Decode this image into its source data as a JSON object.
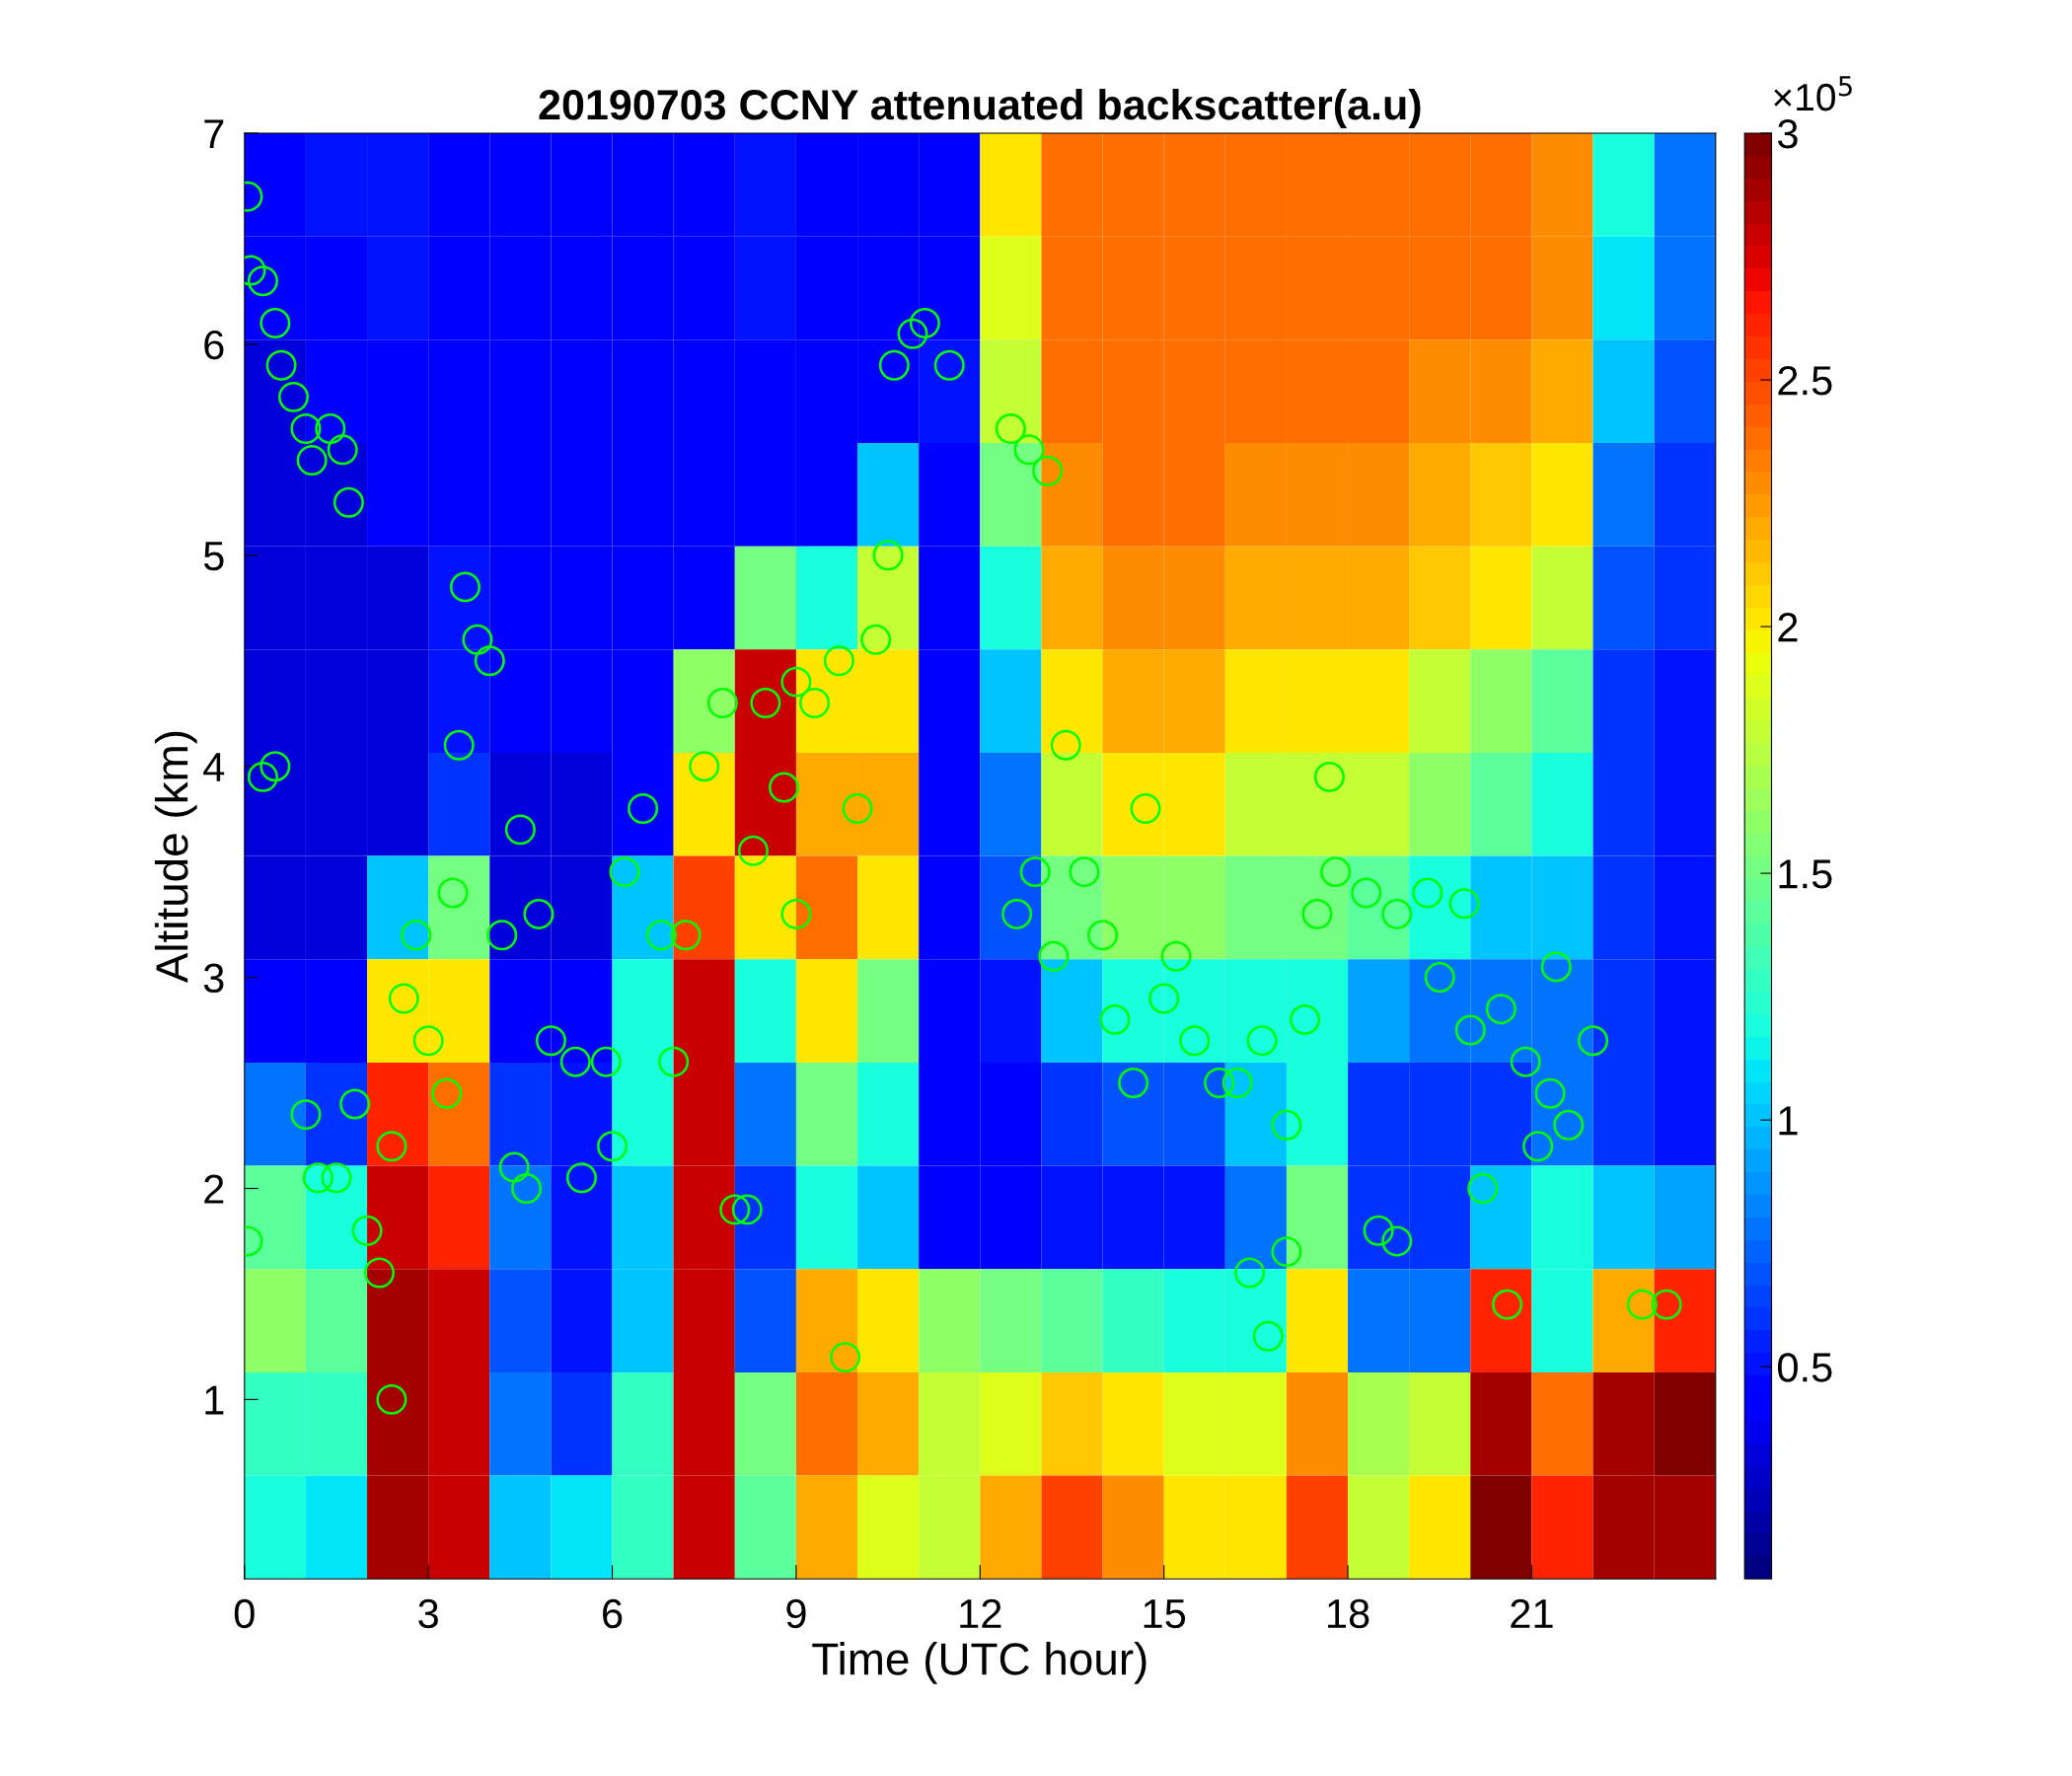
{
  "chart_data": {
    "type": "heatmap",
    "title": "20190703 CCNY attenuated backscatter(a.u)",
    "xlabel": "Time (UTC hour)",
    "ylabel": "Altitude (km)",
    "clabel": "×10$^{5}$",
    "xlim": [
      0,
      24
    ],
    "xticks": [
      0,
      3,
      6,
      9,
      12,
      15,
      18,
      21
    ],
    "ylim": [
      0.15,
      7
    ],
    "yticks": [
      1,
      2,
      3,
      4,
      5,
      6,
      7
    ],
    "clim": [
      0.07,
      3
    ],
    "cticks": [
      0.5,
      1,
      1.5,
      2,
      2.5,
      3
    ],
    "x": [
      0.5,
      1.5,
      2.5,
      3.5,
      4.5,
      5.5,
      6.5,
      7.5,
      8.5,
      9.5,
      10.5,
      11.5,
      12.5,
      13.5,
      14.5,
      15.5,
      16.5,
      17.5,
      18.5,
      19.5,
      20.5,
      21.5,
      22.5,
      23.5
    ],
    "cells": [
      [
        0.4,
        0.5,
        0.5,
        0.4,
        0.4,
        0.4,
        0.4,
        0.4,
        0.5,
        0.4,
        0.4,
        0.4,
        2.0,
        2.4,
        2.4,
        2.4,
        2.4,
        2.4,
        2.4,
        2.4,
        2.4,
        2.3,
        1.2,
        0.8
      ],
      [
        0.4,
        0.4,
        0.5,
        0.4,
        0.4,
        0.4,
        0.4,
        0.4,
        0.5,
        0.4,
        0.4,
        0.4,
        1.9,
        2.4,
        2.4,
        2.4,
        2.4,
        2.4,
        2.4,
        2.4,
        2.4,
        2.3,
        1.1,
        0.8
      ],
      [
        0.3,
        0.4,
        0.4,
        0.4,
        0.4,
        0.4,
        0.4,
        0.4,
        0.4,
        0.4,
        0.4,
        0.5,
        1.8,
        2.4,
        2.4,
        2.4,
        2.4,
        2.4,
        2.4,
        2.3,
        2.3,
        2.2,
        1.0,
        0.7
      ],
      [
        0.3,
        0.3,
        0.4,
        0.4,
        0.4,
        0.4,
        0.4,
        0.4,
        0.4,
        0.4,
        1.0,
        0.4,
        1.5,
        2.3,
        2.4,
        2.4,
        2.3,
        2.3,
        2.3,
        2.2,
        2.1,
        2.0,
        0.8,
        0.6
      ],
      [
        0.3,
        0.3,
        0.3,
        0.5,
        0.4,
        0.4,
        0.4,
        0.4,
        1.5,
        1.2,
        1.8,
        0.4,
        1.2,
        2.2,
        2.3,
        2.3,
        2.2,
        2.2,
        2.2,
        2.1,
        2.0,
        1.8,
        0.7,
        0.6
      ],
      [
        0.3,
        0.3,
        0.3,
        0.5,
        0.4,
        0.4,
        0.4,
        1.6,
        2.8,
        2.0,
        2.0,
        0.4,
        1.0,
        2.0,
        2.2,
        2.2,
        2.0,
        2.0,
        2.0,
        1.8,
        1.6,
        1.4,
        0.6,
        0.5
      ],
      [
        0.3,
        0.3,
        0.3,
        0.6,
        0.3,
        0.3,
        0.4,
        2.0,
        2.8,
        2.2,
        2.2,
        0.4,
        0.8,
        1.8,
        2.0,
        2.0,
        1.8,
        1.8,
        1.8,
        1.6,
        1.4,
        1.2,
        0.6,
        0.5
      ],
      [
        0.3,
        0.3,
        1.0,
        1.5,
        0.3,
        0.3,
        1.0,
        2.5,
        2.0,
        2.4,
        2.0,
        0.4,
        0.7,
        1.5,
        1.6,
        1.6,
        1.5,
        1.5,
        1.4,
        1.2,
        1.0,
        1.0,
        0.6,
        0.5
      ],
      [
        0.4,
        0.4,
        2.0,
        2.0,
        0.4,
        0.4,
        1.2,
        2.8,
        1.2,
        2.0,
        1.5,
        0.4,
        0.5,
        1.0,
        1.2,
        1.2,
        1.2,
        1.2,
        0.9,
        0.8,
        0.8,
        0.8,
        0.6,
        0.5
      ],
      [
        0.8,
        0.6,
        2.6,
        2.4,
        0.6,
        0.5,
        1.2,
        2.8,
        0.8,
        1.5,
        1.2,
        0.4,
        0.4,
        0.6,
        0.7,
        0.7,
        1.0,
        1.2,
        0.6,
        0.6,
        0.6,
        0.8,
        0.6,
        0.5
      ],
      [
        1.4,
        1.2,
        2.8,
        2.6,
        0.8,
        0.5,
        1.0,
        2.8,
        0.6,
        1.2,
        1.0,
        0.4,
        0.4,
        0.5,
        0.5,
        0.5,
        0.8,
        1.5,
        0.6,
        0.6,
        1.0,
        1.2,
        1.0,
        0.9
      ],
      [
        1.6,
        1.4,
        2.9,
        2.8,
        0.7,
        0.5,
        1.0,
        2.8,
        0.7,
        2.2,
        2.0,
        1.6,
        1.5,
        1.4,
        1.3,
        1.2,
        1.2,
        2.0,
        0.8,
        0.8,
        2.6,
        1.2,
        2.2,
        2.6
      ],
      [
        1.3,
        1.3,
        2.9,
        2.8,
        0.8,
        0.6,
        1.3,
        2.8,
        1.5,
        2.4,
        2.2,
        1.8,
        1.9,
        2.1,
        2.0,
        1.9,
        1.9,
        2.3,
        1.7,
        1.8,
        2.9,
        2.4,
        2.9,
        3.0
      ],
      [
        1.2,
        1.1,
        2.9,
        2.8,
        1.0,
        1.1,
        1.3,
        2.8,
        1.4,
        2.2,
        1.9,
        1.8,
        2.2,
        2.5,
        2.3,
        2.0,
        2.0,
        2.5,
        1.8,
        2.0,
        3.0,
        2.6,
        2.9,
        2.9
      ]
    ],
    "series": [
      {
        "type": "scatter",
        "color": "#00ff00",
        "marker": "circle",
        "x": [
          0.05,
          0.1,
          0.3,
          0.5,
          0.6,
          0.8,
          1.0,
          1.1,
          1.4,
          1.6,
          1.7,
          0.3,
          0.5,
          0.05,
          1.0,
          1.2,
          1.5,
          1.8,
          2.0,
          2.2,
          2.4,
          2.4,
          2.6,
          2.8,
          3.0,
          3.3,
          3.4,
          3.6,
          3.8,
          4.0,
          3.5,
          4.2,
          4.4,
          4.6,
          4.5,
          4.8,
          5.0,
          5.4,
          5.5,
          5.9,
          6.0,
          6.2,
          6.5,
          6.8,
          7.2,
          7.0,
          7.5,
          7.8,
          8.0,
          8.2,
          8.3,
          8.5,
          8.8,
          9.0,
          9.0,
          9.3,
          9.7,
          9.8,
          10.0,
          10.3,
          10.5,
          10.6,
          10.9,
          11.1,
          11.5,
          12.5,
          12.8,
          13.1,
          12.6,
          12.9,
          13.2,
          13.4,
          13.7,
          14.0,
          14.2,
          14.5,
          14.7,
          15.0,
          15.2,
          15.5,
          15.9,
          16.2,
          16.4,
          16.6,
          16.7,
          17.0,
          17.0,
          17.3,
          17.5,
          17.7,
          17.8,
          18.3,
          18.5,
          18.8,
          18.8,
          19.3,
          19.5,
          19.9,
          20.0,
          20.2,
          20.5,
          20.6,
          20.9,
          21.1,
          21.3,
          21.4,
          21.6,
          22.0,
          22.8,
          23.2
        ],
        "values": [
          6.7,
          6.35,
          6.3,
          6.1,
          5.9,
          5.75,
          5.6,
          5.45,
          5.6,
          5.5,
          5.25,
          3.95,
          4.0,
          1.75,
          2.35,
          2.05,
          2.05,
          2.4,
          1.8,
          1.6,
          2.2,
          1.0,
          2.9,
          3.2,
          2.7,
          2.45,
          3.4,
          4.85,
          4.6,
          4.5,
          4.1,
          3.2,
          2.1,
          2.0,
          3.7,
          3.3,
          2.7,
          2.6,
          2.05,
          2.6,
          2.2,
          3.5,
          3.8,
          3.2,
          3.2,
          2.6,
          4.0,
          4.3,
          1.9,
          1.9,
          3.6,
          4.3,
          3.9,
          4.4,
          3.3,
          4.3,
          4.5,
          1.2,
          3.8,
          4.6,
          5.0,
          5.9,
          6.05,
          6.1,
          5.9,
          5.6,
          5.5,
          5.4,
          3.3,
          3.5,
          3.1,
          4.1,
          3.5,
          3.2,
          2.8,
          2.5,
          3.8,
          2.9,
          3.1,
          2.7,
          2.5,
          2.5,
          1.6,
          2.7,
          1.3,
          2.3,
          1.7,
          2.8,
          3.3,
          3.95,
          3.5,
          3.4,
          1.8,
          1.75,
          3.3,
          3.4,
          3.0,
          3.35,
          2.75,
          2.0,
          2.85,
          1.45,
          2.6,
          2.2,
          2.45,
          3.05,
          2.3,
          2.7,
          1.45,
          1.45
        ]
      }
    ]
  }
}
